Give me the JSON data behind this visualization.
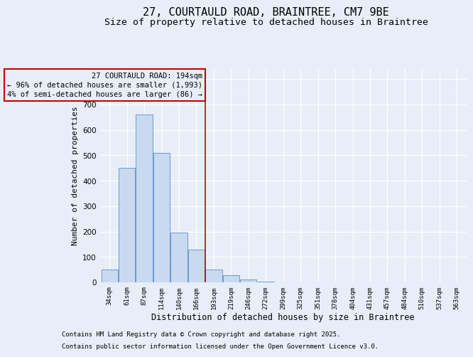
{
  "title_line1": "27, COURTAULD ROAD, BRAINTREE, CM7 9BE",
  "title_line2": "Size of property relative to detached houses in Braintree",
  "xlabel": "Distribution of detached houses by size in Braintree",
  "ylabel": "Number of detached properties",
  "categories": [
    "34sqm",
    "61sqm",
    "87sqm",
    "114sqm",
    "140sqm",
    "166sqm",
    "193sqm",
    "219sqm",
    "246sqm",
    "272sqm",
    "299sqm",
    "325sqm",
    "351sqm",
    "378sqm",
    "404sqm",
    "431sqm",
    "457sqm",
    "484sqm",
    "510sqm",
    "537sqm",
    "563sqm"
  ],
  "values": [
    50,
    450,
    660,
    510,
    197,
    130,
    50,
    28,
    10,
    2,
    0,
    0,
    0,
    0,
    0,
    0,
    0,
    0,
    0,
    0,
    0
  ],
  "bar_color": "#c9d9f0",
  "bar_edge_color": "#5b8dc8",
  "background_color": "#e8eef8",
  "grid_color": "#ffffff",
  "annotation_box_text": "27 COURTAULD ROAD: 194sqm\n← 96% of detached houses are smaller (1,993)\n4% of semi-detached houses are larger (86) →",
  "vline_color": "#cc0000",
  "box_edge_color": "#cc0000",
  "footnote1": "Contains HM Land Registry data © Crown copyright and database right 2025.",
  "footnote2": "Contains public sector information licensed under the Open Government Licence v3.0.",
  "ylim": [
    0,
    840
  ],
  "yticks": [
    0,
    100,
    200,
    300,
    400,
    500,
    600,
    700,
    800
  ],
  "title_fontsize": 11,
  "subtitle_fontsize": 9.5,
  "annotation_fontsize": 7.5,
  "footnote_fontsize": 6.5,
  "ylabel_fontsize": 8,
  "xlabel_fontsize": 8.5
}
